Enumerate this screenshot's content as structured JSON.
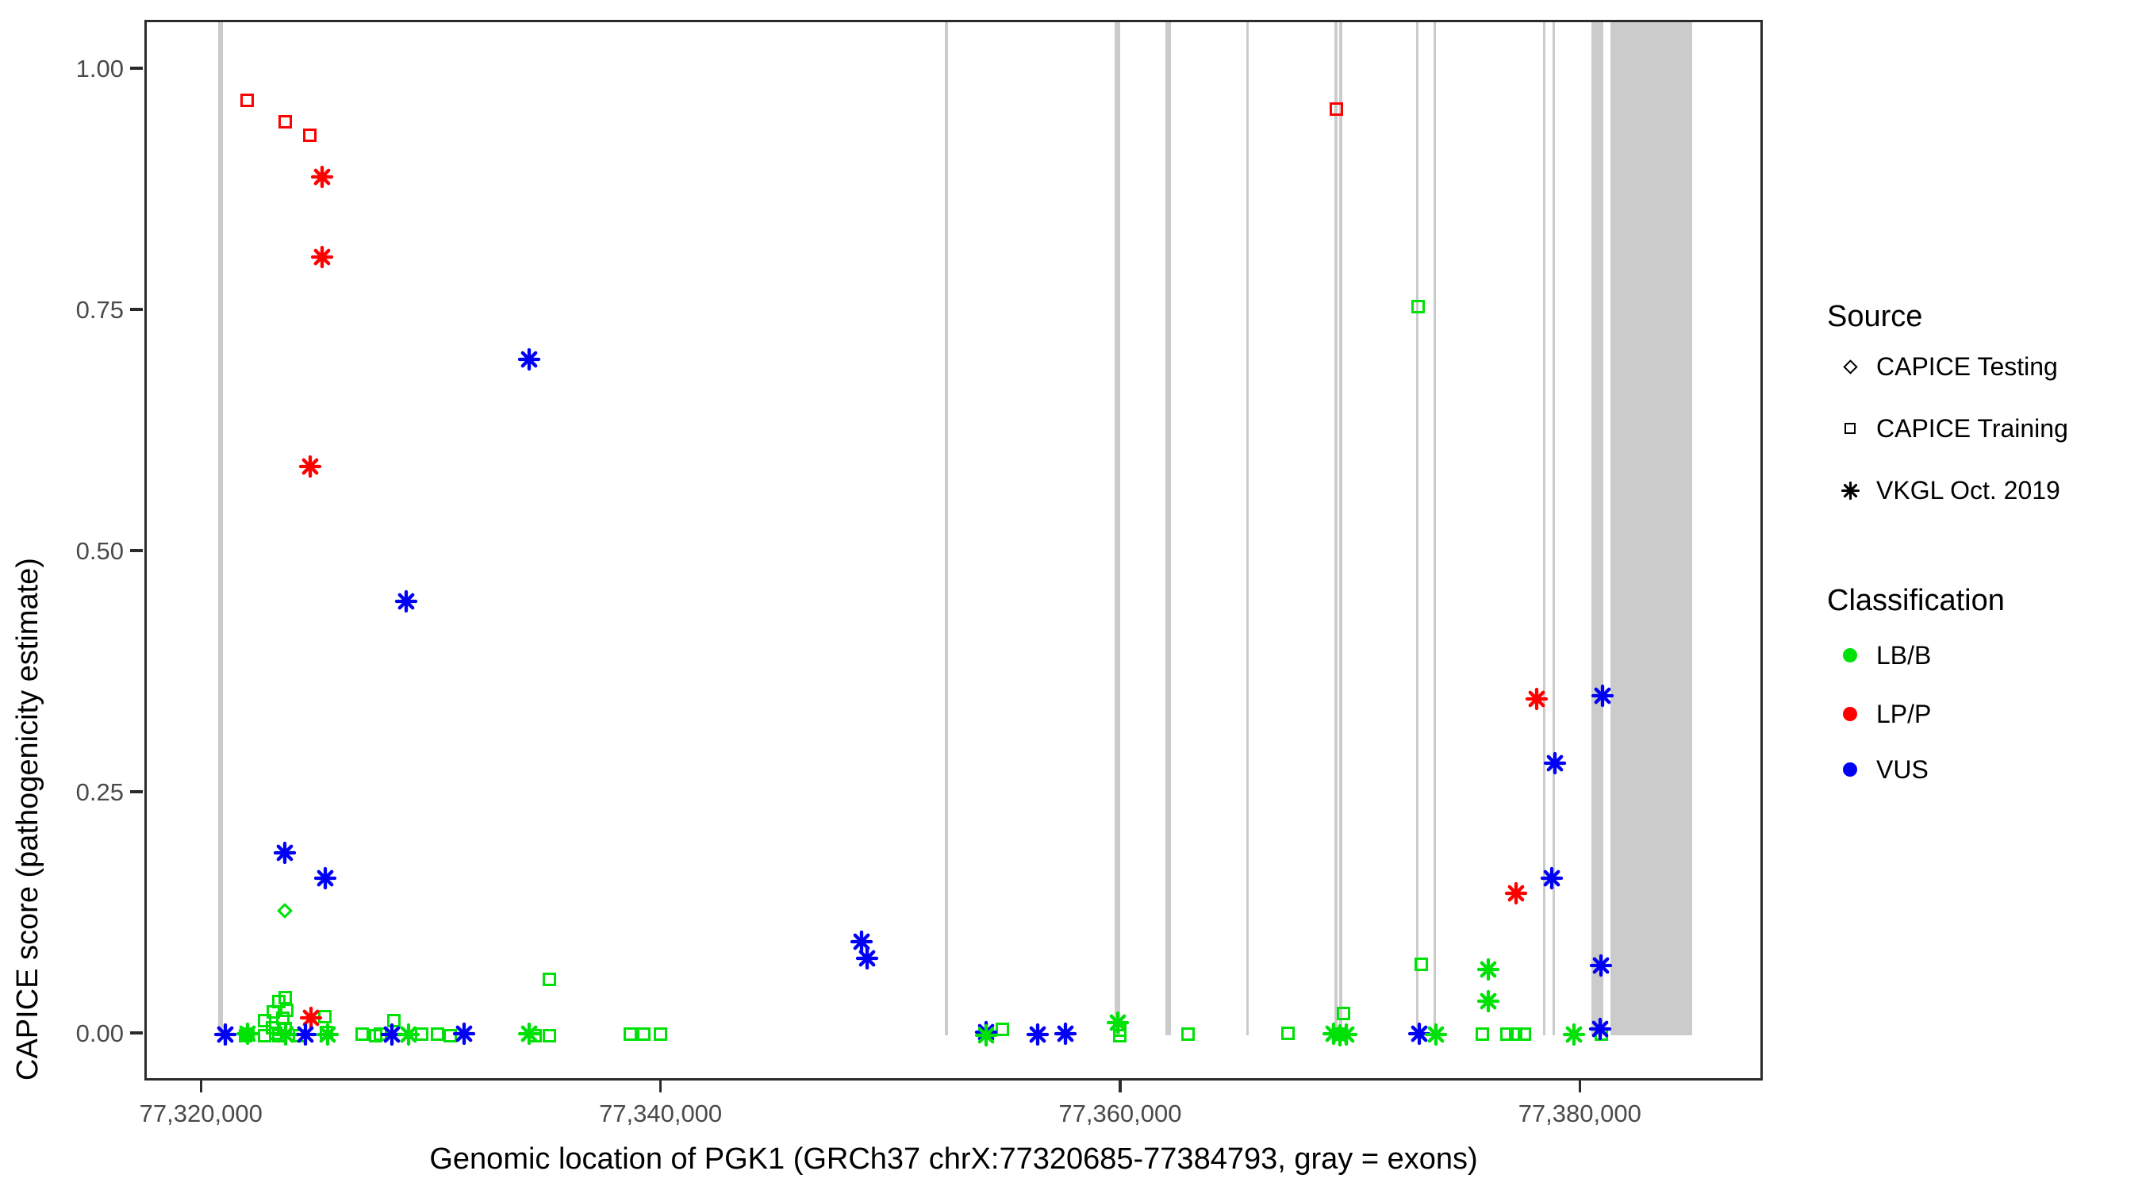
{
  "axes": {
    "x": {
      "title": "Genomic location of PGK1 (GRCh37 chrX:77320685-77384793, gray = exons)",
      "domain": [
        77317540,
        77387965
      ],
      "ticks": [
        {
          "value": 77320000,
          "label": "77,320,000"
        },
        {
          "value": 77340000,
          "label": "77,340,000"
        },
        {
          "value": 77360000,
          "label": "77,360,000"
        },
        {
          "value": 77380000,
          "label": "77,380,000"
        }
      ]
    },
    "y": {
      "title": "CAPICE score (pathogenicity estimate)",
      "domain": [
        -0.0493,
        1.0502
      ],
      "ticks": [
        {
          "value": 1.0,
          "label": "1.00"
        },
        {
          "value": 0.75,
          "label": "0.75"
        },
        {
          "value": 0.5,
          "label": "0.50"
        },
        {
          "value": 0.25,
          "label": "0.25"
        },
        {
          "value": 0.0,
          "label": "0.00"
        }
      ]
    }
  },
  "legend": {
    "source": {
      "title": "Source",
      "items": [
        {
          "label": "CAPICE Testing",
          "shape": "diamond"
        },
        {
          "label": "CAPICE Training",
          "shape": "square"
        },
        {
          "label": "VKGL Oct. 2019",
          "shape": "asterisk"
        }
      ]
    },
    "classification": {
      "title": "Classification",
      "items": [
        {
          "label": "LB/B",
          "color": "#00e108"
        },
        {
          "label": "LP/P",
          "color": "#fe0000"
        },
        {
          "label": "VUS",
          "color": "#0000f5"
        }
      ]
    }
  },
  "chart_data": {
    "type": "scatter",
    "xlabel": "Genomic location of PGK1 (GRCh37 chrX:77320685-77384793, gray = exons)",
    "ylabel": "CAPICE score (pathogenicity estimate)",
    "x_domain": [
      77317540,
      77387965
    ],
    "y_domain": [
      -0.0493,
      1.0502
    ],
    "exon_color": "#cbcbcb",
    "exons": [
      [
        77320650,
        77320860
      ],
      [
        77352270,
        77352405
      ],
      [
        77359660,
        77359900
      ],
      [
        77361860,
        77362100
      ],
      [
        77365400,
        77365505
      ],
      [
        77369220,
        77369360
      ],
      [
        77369420,
        77369570
      ],
      [
        77372790,
        77372895
      ],
      [
        77373550,
        77373655
      ],
      [
        77378290,
        77378410
      ],
      [
        77378700,
        77378805
      ],
      [
        77380390,
        77380940
      ],
      [
        77381220,
        77384790
      ]
    ],
    "points": [
      {
        "g": 77321850,
        "s": 0.0,
        "shape": "square",
        "cls": "LB/B",
        "source": "CAPICE Training"
      },
      {
        "g": 77321930,
        "s": 0.001,
        "shape": "square",
        "cls": "LB/B",
        "source": "CAPICE Training"
      },
      {
        "g": 77322650,
        "s": 0.015,
        "shape": "square",
        "cls": "LB/B",
        "source": "CAPICE Training"
      },
      {
        "g": 77322650,
        "s": 0.0,
        "shape": "square",
        "cls": "LB/B",
        "source": "CAPICE Training"
      },
      {
        "g": 77323010,
        "s": 0.008,
        "shape": "square",
        "cls": "LB/B",
        "source": "CAPICE Training"
      },
      {
        "g": 77323050,
        "s": 0.024,
        "shape": "square",
        "cls": "LB/B",
        "source": "CAPICE Training"
      },
      {
        "g": 77323160,
        "s": 0.002,
        "shape": "square",
        "cls": "LB/B",
        "source": "CAPICE Training"
      },
      {
        "g": 77323280,
        "s": 0.035,
        "shape": "square",
        "cls": "LB/B",
        "source": "CAPICE Training"
      },
      {
        "g": 77323280,
        "s": 0.0,
        "shape": "square",
        "cls": "LB/B",
        "source": "CAPICE Training"
      },
      {
        "g": 77323460,
        "s": 0.018,
        "shape": "square",
        "cls": "LB/B",
        "source": "CAPICE Training"
      },
      {
        "g": 77323570,
        "s": 0.039,
        "shape": "square",
        "cls": "LB/B",
        "source": "CAPICE Training"
      },
      {
        "g": 77323570,
        "s": 0.007,
        "shape": "square",
        "cls": "LB/B",
        "source": "CAPICE Training"
      },
      {
        "g": 77323630,
        "s": 0.026,
        "shape": "square",
        "cls": "LB/B",
        "source": "CAPICE Training"
      },
      {
        "g": 77324200,
        "s": 0.0,
        "shape": "square",
        "cls": "LB/B",
        "source": "CAPICE Training"
      },
      {
        "g": 77325300,
        "s": 0.019,
        "shape": "square",
        "cls": "LB/B",
        "source": "CAPICE Training"
      },
      {
        "g": 77325360,
        "s": 0.003,
        "shape": "square",
        "cls": "LB/B",
        "source": "CAPICE Training"
      },
      {
        "g": 77326900,
        "s": 0.001,
        "shape": "square",
        "cls": "LB/B",
        "source": "CAPICE Training"
      },
      {
        "g": 77327500,
        "s": 0.0,
        "shape": "square",
        "cls": "LB/B",
        "source": "CAPICE Training"
      },
      {
        "g": 77327710,
        "s": 0.001,
        "shape": "square",
        "cls": "LB/B",
        "source": "CAPICE Training"
      },
      {
        "g": 77328290,
        "s": 0.015,
        "shape": "square",
        "cls": "LB/B",
        "source": "CAPICE Training"
      },
      {
        "g": 77329500,
        "s": 0.001,
        "shape": "square",
        "cls": "LB/B",
        "source": "CAPICE Training"
      },
      {
        "g": 77330200,
        "s": 0.001,
        "shape": "square",
        "cls": "LB/B",
        "source": "CAPICE Training"
      },
      {
        "g": 77330760,
        "s": 0.0,
        "shape": "square",
        "cls": "LB/B",
        "source": "CAPICE Training"
      },
      {
        "g": 77334455,
        "s": 0.0,
        "shape": "square",
        "cls": "LB/B",
        "source": "CAPICE Training"
      },
      {
        "g": 77335060,
        "s": 0.0,
        "shape": "square",
        "cls": "LB/B",
        "source": "CAPICE Training"
      },
      {
        "g": 77335060,
        "s": 0.058,
        "shape": "square",
        "cls": "LB/B",
        "source": "CAPICE Training"
      },
      {
        "g": 77338565,
        "s": 0.001,
        "shape": "square",
        "cls": "LB/B",
        "source": "CAPICE Training"
      },
      {
        "g": 77339170,
        "s": 0.001,
        "shape": "square",
        "cls": "LB/B",
        "source": "CAPICE Training"
      },
      {
        "g": 77339895,
        "s": 0.001,
        "shape": "square",
        "cls": "LB/B",
        "source": "CAPICE Training"
      },
      {
        "g": 77354760,
        "s": 0.006,
        "shape": "square",
        "cls": "LB/B",
        "source": "CAPICE Training"
      },
      {
        "g": 77359880,
        "s": 0.005,
        "shape": "square",
        "cls": "LB/B",
        "source": "CAPICE Training"
      },
      {
        "g": 77359880,
        "s": 0.0,
        "shape": "square",
        "cls": "LB/B",
        "source": "CAPICE Training"
      },
      {
        "g": 77362850,
        "s": 0.001,
        "shape": "square",
        "cls": "LB/B",
        "source": "CAPICE Training"
      },
      {
        "g": 77367200,
        "s": 0.002,
        "shape": "square",
        "cls": "LB/B",
        "source": "CAPICE Training"
      },
      {
        "g": 77369400,
        "s": 0.001,
        "shape": "square",
        "cls": "LB/B",
        "source": "CAPICE Training"
      },
      {
        "g": 77369600,
        "s": 0.023,
        "shape": "square",
        "cls": "LB/B",
        "source": "CAPICE Training"
      },
      {
        "g": 77372850,
        "s": 0.755,
        "shape": "square",
        "cls": "LB/B",
        "source": "CAPICE Training"
      },
      {
        "g": 77373000,
        "s": 0.074,
        "shape": "square",
        "cls": "LB/B",
        "source": "CAPICE Training"
      },
      {
        "g": 77375660,
        "s": 0.001,
        "shape": "square",
        "cls": "LB/B",
        "source": "CAPICE Training"
      },
      {
        "g": 77376745,
        "s": 0.001,
        "shape": "square",
        "cls": "LB/B",
        "source": "CAPICE Training"
      },
      {
        "g": 77377110,
        "s": 0.001,
        "shape": "square",
        "cls": "LB/B",
        "source": "CAPICE Training"
      },
      {
        "g": 77377475,
        "s": 0.001,
        "shape": "square",
        "cls": "LB/B",
        "source": "CAPICE Training"
      },
      {
        "g": 77380820,
        "s": 0.001,
        "shape": "square",
        "cls": "LB/B",
        "source": "CAPICE Training"
      },
      {
        "g": 77321900,
        "s": 0.969,
        "shape": "square",
        "cls": "LP/P",
        "source": "CAPICE Training"
      },
      {
        "g": 77323580,
        "s": 0.947,
        "shape": "square",
        "cls": "LP/P",
        "source": "CAPICE Training"
      },
      {
        "g": 77324650,
        "s": 0.933,
        "shape": "square",
        "cls": "LP/P",
        "source": "CAPICE Training"
      },
      {
        "g": 77369290,
        "s": 0.96,
        "shape": "square",
        "cls": "LP/P",
        "source": "CAPICE Training"
      },
      {
        "g": 77323540,
        "s": 0.129,
        "shape": "diamond",
        "cls": "LB/B",
        "source": "CAPICE Testing"
      },
      {
        "g": 77325180,
        "s": 0.89,
        "shape": "asterisk",
        "cls": "LP/P",
        "source": "VKGL Oct. 2019"
      },
      {
        "g": 77325180,
        "s": 0.807,
        "shape": "asterisk",
        "cls": "LP/P",
        "source": "VKGL Oct. 2019"
      },
      {
        "g": 77324660,
        "s": 0.59,
        "shape": "asterisk",
        "cls": "LP/P",
        "source": "VKGL Oct. 2019"
      },
      {
        "g": 77324700,
        "s": 0.018,
        "shape": "asterisk",
        "cls": "LP/P",
        "source": "VKGL Oct. 2019"
      },
      {
        "g": 77378030,
        "s": 0.349,
        "shape": "asterisk",
        "cls": "LP/P",
        "source": "VKGL Oct. 2019"
      },
      {
        "g": 77377130,
        "s": 0.147,
        "shape": "asterisk",
        "cls": "LP/P",
        "source": "VKGL Oct. 2019"
      },
      {
        "g": 77334190,
        "s": 0.701,
        "shape": "asterisk",
        "cls": "VUS",
        "source": "VKGL Oct. 2019"
      },
      {
        "g": 77328830,
        "s": 0.45,
        "shape": "asterisk",
        "cls": "VUS",
        "source": "VKGL Oct. 2019"
      },
      {
        "g": 77323540,
        "s": 0.189,
        "shape": "asterisk",
        "cls": "VUS",
        "source": "VKGL Oct. 2019"
      },
      {
        "g": 77325320,
        "s": 0.163,
        "shape": "asterisk",
        "cls": "VUS",
        "source": "VKGL Oct. 2019"
      },
      {
        "g": 77348650,
        "s": 0.097,
        "shape": "asterisk",
        "cls": "VUS",
        "source": "VKGL Oct. 2019"
      },
      {
        "g": 77348900,
        "s": 0.08,
        "shape": "asterisk",
        "cls": "VUS",
        "source": "VKGL Oct. 2019"
      },
      {
        "g": 77380880,
        "s": 0.352,
        "shape": "asterisk",
        "cls": "VUS",
        "source": "VKGL Oct. 2019"
      },
      {
        "g": 77378800,
        "s": 0.282,
        "shape": "asterisk",
        "cls": "VUS",
        "source": "VKGL Oct. 2019"
      },
      {
        "g": 77378670,
        "s": 0.163,
        "shape": "asterisk",
        "cls": "VUS",
        "source": "VKGL Oct. 2019"
      },
      {
        "g": 77380820,
        "s": 0.072,
        "shape": "asterisk",
        "cls": "VUS",
        "source": "VKGL Oct. 2019"
      },
      {
        "g": 77380790,
        "s": 0.007,
        "shape": "asterisk",
        "cls": "VUS",
        "source": "VKGL Oct. 2019"
      },
      {
        "g": 77320960,
        "s": 0.001,
        "shape": "asterisk",
        "cls": "VUS",
        "source": "VKGL Oct. 2019"
      },
      {
        "g": 77324430,
        "s": 0.001,
        "shape": "asterisk",
        "cls": "VUS",
        "source": "VKGL Oct. 2019"
      },
      {
        "g": 77328200,
        "s": 0.001,
        "shape": "asterisk",
        "cls": "VUS",
        "source": "VKGL Oct. 2019"
      },
      {
        "g": 77331340,
        "s": 0.002,
        "shape": "asterisk",
        "cls": "VUS",
        "source": "VKGL Oct. 2019"
      },
      {
        "g": 77354080,
        "s": 0.003,
        "shape": "asterisk",
        "cls": "VUS",
        "source": "VKGL Oct. 2019"
      },
      {
        "g": 77356320,
        "s": 0.001,
        "shape": "asterisk",
        "cls": "VUS",
        "source": "VKGL Oct. 2019"
      },
      {
        "g": 77357530,
        "s": 0.002,
        "shape": "asterisk",
        "cls": "VUS",
        "source": "VKGL Oct. 2019"
      },
      {
        "g": 77372930,
        "s": 0.002,
        "shape": "asterisk",
        "cls": "VUS",
        "source": "VKGL Oct. 2019"
      },
      {
        "g": 77321930,
        "s": 0.002,
        "shape": "asterisk",
        "cls": "LB/B",
        "source": "VKGL Oct. 2019"
      },
      {
        "g": 77323570,
        "s": 0.001,
        "shape": "asterisk",
        "cls": "LB/B",
        "source": "VKGL Oct. 2019"
      },
      {
        "g": 77325420,
        "s": 0.001,
        "shape": "asterisk",
        "cls": "LB/B",
        "source": "VKGL Oct. 2019"
      },
      {
        "g": 77328920,
        "s": 0.001,
        "shape": "asterisk",
        "cls": "LB/B",
        "source": "VKGL Oct. 2019"
      },
      {
        "g": 77334170,
        "s": 0.002,
        "shape": "asterisk",
        "cls": "LB/B",
        "source": "VKGL Oct. 2019"
      },
      {
        "g": 77354080,
        "s": 0.0,
        "shape": "asterisk",
        "cls": "LB/B",
        "source": "VKGL Oct. 2019"
      },
      {
        "g": 77359780,
        "s": 0.013,
        "shape": "asterisk",
        "cls": "LB/B",
        "source": "VKGL Oct. 2019"
      },
      {
        "g": 77369180,
        "s": 0.002,
        "shape": "asterisk",
        "cls": "LB/B",
        "source": "VKGL Oct. 2019"
      },
      {
        "g": 77369460,
        "s": 0.0,
        "shape": "asterisk",
        "cls": "LB/B",
        "source": "VKGL Oct. 2019"
      },
      {
        "g": 77369730,
        "s": 0.001,
        "shape": "asterisk",
        "cls": "LB/B",
        "source": "VKGL Oct. 2019"
      },
      {
        "g": 77373650,
        "s": 0.001,
        "shape": "asterisk",
        "cls": "LB/B",
        "source": "VKGL Oct. 2019"
      },
      {
        "g": 77375900,
        "s": 0.068,
        "shape": "asterisk",
        "cls": "LB/B",
        "source": "VKGL Oct. 2019"
      },
      {
        "g": 77375900,
        "s": 0.035,
        "shape": "asterisk",
        "cls": "LB/B",
        "source": "VKGL Oct. 2019"
      },
      {
        "g": 77379640,
        "s": 0.001,
        "shape": "asterisk",
        "cls": "LB/B",
        "source": "VKGL Oct. 2019"
      }
    ]
  }
}
